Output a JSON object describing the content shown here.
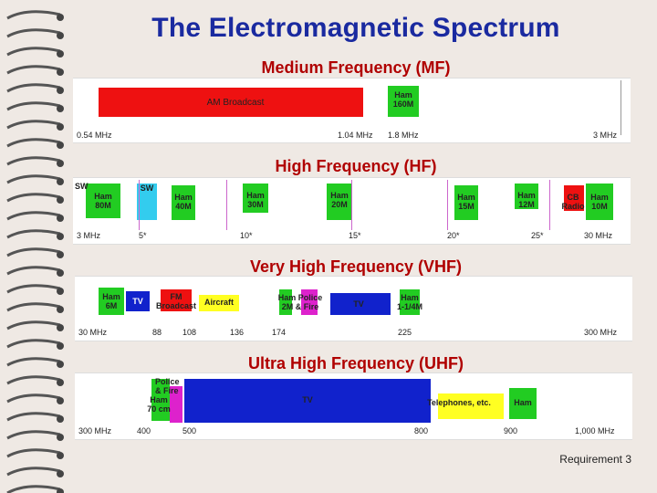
{
  "title": "The Electromagnetic Spectrum",
  "bands": {
    "mf": {
      "title": "Medium Frequency (MF)",
      "labels": [
        "AM Broadcast",
        "Ham\n160M"
      ],
      "ticks": [
        "0.54 MHz",
        "1.04 MHz",
        "1.8 MHz",
        "3 MHz"
      ]
    },
    "hf": {
      "title": "High Frequency (HF)",
      "labels": [
        "SW",
        "Ham\n80M",
        "SW",
        "Ham\n40M",
        "Ham\n30M",
        "Ham\n20M",
        "Ham\n15M",
        "Ham\n12M",
        "CB\nRadio",
        "Ham\n10M"
      ],
      "ticks": [
        "3 MHz",
        "5*",
        "10*",
        "15*",
        "20*",
        "25*",
        "30 MHz"
      ]
    },
    "vhf": {
      "title": "Very High Frequency (VHF)",
      "labels": [
        "Ham\n6M",
        "TV",
        "FM\nBroadcast",
        "Aircraft",
        "Ham Police\n2M & Fire",
        "TV",
        "Ham\n1-1/4M"
      ],
      "ticks": [
        "30 MHz",
        "88",
        "108",
        "136",
        "174",
        "225",
        "300 MHz"
      ]
    },
    "uhf": {
      "title": "Ultra High Frequency (UHF)",
      "labels": [
        "Police\n& Fire",
        "Ham\n70 cm",
        "TV",
        "Telephones, etc.",
        "Ham"
      ],
      "ticks": [
        "300 MHz",
        "400",
        "500",
        "800",
        "900",
        "1,000 MHz"
      ]
    }
  },
  "footer": "Requirement 3",
  "colors": {
    "ham": "#22cc22",
    "red": "#ee1111",
    "sw": "#33ccee",
    "tv": "#1122cc",
    "aircraft": "#ffff22",
    "police": "#dd22cc"
  }
}
